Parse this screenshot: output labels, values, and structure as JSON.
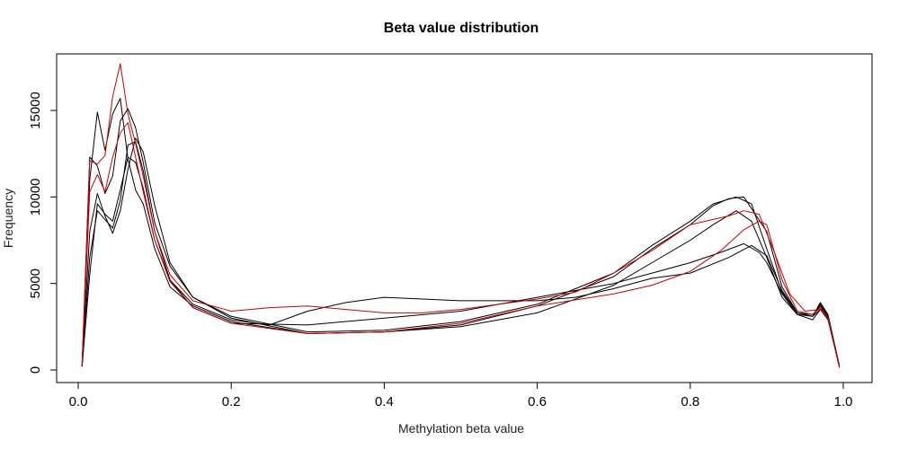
{
  "chart_data": {
    "type": "line",
    "title": "Beta value distribution",
    "xlabel": "Methylation beta value",
    "ylabel": "Frequency",
    "xlim": [
      0.0,
      1.0
    ],
    "ylim": [
      -500,
      18000
    ],
    "xticks": [
      0.0,
      0.2,
      0.4,
      0.6,
      0.8,
      1.0
    ],
    "xtick_labels": [
      "0.0",
      "0.2",
      "0.4",
      "0.6",
      "0.8",
      "1.0"
    ],
    "yticks": [
      0,
      5000,
      10000,
      15000
    ],
    "ytick_labels": [
      "0",
      "5000",
      "10000",
      "15000"
    ],
    "grid": false,
    "legend": "none",
    "series": [
      {
        "color": "#000000",
        "x": [
          0.005,
          0.015,
          0.025,
          0.035,
          0.045,
          0.055,
          0.065,
          0.075,
          0.085,
          0.1,
          0.12,
          0.15,
          0.2,
          0.3,
          0.4,
          0.5,
          0.6,
          0.7,
          0.75,
          0.8,
          0.83,
          0.86,
          0.88,
          0.9,
          0.92,
          0.94,
          0.96,
          0.97,
          0.98,
          0.995
        ],
        "y": [
          300,
          12300,
          11800,
          10200,
          11200,
          14400,
          15100,
          14000,
          12000,
          8500,
          6000,
          4200,
          3100,
          2200,
          2300,
          2800,
          3800,
          5600,
          7200,
          8600,
          9600,
          10000,
          9600,
          7000,
          4500,
          3300,
          3200,
          3700,
          3000,
          200
        ]
      },
      {
        "color": "#000000",
        "x": [
          0.005,
          0.015,
          0.025,
          0.035,
          0.045,
          0.055,
          0.065,
          0.075,
          0.085,
          0.1,
          0.12,
          0.15,
          0.2,
          0.3,
          0.4,
          0.5,
          0.6,
          0.7,
          0.75,
          0.8,
          0.83,
          0.85,
          0.87,
          0.9,
          0.92,
          0.94,
          0.96,
          0.97,
          0.98,
          0.995
        ],
        "y": [
          200,
          11000,
          14900,
          12700,
          14800,
          15700,
          12200,
          10400,
          9600,
          7000,
          4800,
          3700,
          2800,
          2100,
          2200,
          2600,
          3700,
          5400,
          7000,
          8400,
          9500,
          9900,
          10000,
          8000,
          4800,
          3300,
          3100,
          3800,
          3100,
          200
        ]
      },
      {
        "color": "#000000",
        "x": [
          0.005,
          0.015,
          0.025,
          0.035,
          0.045,
          0.055,
          0.065,
          0.075,
          0.085,
          0.1,
          0.12,
          0.15,
          0.2,
          0.3,
          0.4,
          0.5,
          0.6,
          0.7,
          0.75,
          0.8,
          0.83,
          0.86,
          0.88,
          0.9,
          0.92,
          0.94,
          0.96,
          0.97,
          0.98,
          0.995
        ],
        "y": [
          250,
          8000,
          10200,
          8900,
          7900,
          9200,
          11600,
          13400,
          12600,
          9500,
          6200,
          4200,
          3000,
          2100,
          2200,
          2500,
          3300,
          4900,
          6200,
          7500,
          8400,
          9200,
          8600,
          6500,
          4200,
          3200,
          3100,
          3900,
          3200,
          250
        ]
      },
      {
        "color": "#000000",
        "x": [
          0.005,
          0.015,
          0.025,
          0.035,
          0.045,
          0.055,
          0.065,
          0.075,
          0.085,
          0.1,
          0.12,
          0.15,
          0.2,
          0.3,
          0.4,
          0.5,
          0.6,
          0.7,
          0.75,
          0.8,
          0.84,
          0.87,
          0.89,
          0.9,
          0.92,
          0.94,
          0.96,
          0.97,
          0.98,
          0.995
        ],
        "y": [
          200,
          6500,
          9200,
          8700,
          8200,
          9800,
          13000,
          13200,
          11500,
          8000,
          5200,
          3600,
          2700,
          2600,
          3000,
          3400,
          4200,
          5000,
          5600,
          6200,
          6800,
          7300,
          6800,
          6200,
          4400,
          3200,
          2900,
          3500,
          3000,
          150
        ]
      },
      {
        "color": "#000000",
        "x": [
          0.005,
          0.015,
          0.025,
          0.035,
          0.045,
          0.055,
          0.065,
          0.075,
          0.085,
          0.1,
          0.12,
          0.15,
          0.2,
          0.25,
          0.3,
          0.35,
          0.4,
          0.45,
          0.5,
          0.55,
          0.6,
          0.65,
          0.7,
          0.75,
          0.8,
          0.85,
          0.88,
          0.9,
          0.92,
          0.94,
          0.96,
          0.97,
          0.98,
          0.995
        ],
        "y": [
          200,
          5500,
          9600,
          9000,
          8600,
          10400,
          12300,
          12000,
          10500,
          7500,
          5200,
          3800,
          2900,
          2600,
          3400,
          3900,
          4200,
          4100,
          4000,
          4000,
          4000,
          4200,
          4700,
          5300,
          5600,
          6500,
          7200,
          6600,
          4600,
          3300,
          3100,
          3500,
          2900,
          200
        ]
      },
      {
        "color": "#cc0000",
        "x": [
          0.005,
          0.015,
          0.025,
          0.035,
          0.045,
          0.055,
          0.065,
          0.075,
          0.085,
          0.1,
          0.12,
          0.15,
          0.2,
          0.25,
          0.3,
          0.35,
          0.4,
          0.45,
          0.5,
          0.55,
          0.6,
          0.65,
          0.7,
          0.75,
          0.8,
          0.83,
          0.85,
          0.87,
          0.89,
          0.91,
          0.93,
          0.95,
          0.97,
          0.98,
          0.995
        ],
        "y": [
          300,
          12100,
          11900,
          12400,
          15800,
          17700,
          14800,
          13100,
          11200,
          8000,
          5500,
          4000,
          3400,
          3600,
          3700,
          3500,
          3300,
          3300,
          3500,
          3800,
          4100,
          4500,
          5600,
          6900,
          8400,
          8700,
          8900,
          9200,
          9000,
          6800,
          4400,
          3400,
          3500,
          3000,
          150
        ]
      },
      {
        "color": "#cc0000",
        "x": [
          0.005,
          0.015,
          0.025,
          0.035,
          0.045,
          0.055,
          0.065,
          0.075,
          0.085,
          0.1,
          0.12,
          0.15,
          0.2,
          0.3,
          0.4,
          0.5,
          0.6,
          0.7,
          0.75,
          0.8,
          0.84,
          0.87,
          0.89,
          0.9,
          0.92,
          0.94,
          0.96,
          0.97,
          0.98,
          0.995
        ],
        "y": [
          250,
          10300,
          11300,
          10300,
          12300,
          13700,
          14300,
          12300,
          10300,
          7500,
          5100,
          3600,
          2700,
          2100,
          2200,
          2700,
          3700,
          4400,
          4900,
          5700,
          6900,
          8100,
          8600,
          8400,
          5200,
          3400,
          3200,
          3600,
          3000,
          150
        ]
      }
    ]
  }
}
